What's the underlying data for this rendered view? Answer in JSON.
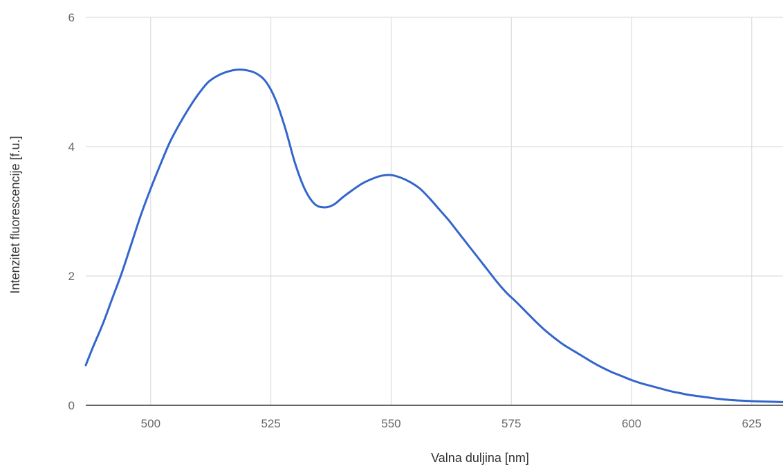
{
  "chart_data": {
    "type": "line",
    "title": "",
    "xlabel": "Valna duljina [nm]",
    "ylabel": "Intenzitet fluorescencije [f.u.]",
    "xlim": [
      486.5,
      631.5
    ],
    "ylim": [
      0,
      6
    ],
    "x_ticks": [
      500,
      525,
      550,
      575,
      600,
      625
    ],
    "y_ticks": [
      0,
      2,
      4,
      6
    ],
    "grid": true,
    "legend": "none",
    "colors": {
      "series": "#3366cc",
      "grid": "#d6d6d6",
      "baseline": "#333333",
      "tick_text": "#666666",
      "axis_title_text": "#333333"
    },
    "series": [
      {
        "x": [
          486.5,
          488,
          490,
          492,
          494,
          496,
          498,
          500,
          502,
          504,
          506,
          508,
          510,
          512,
          514,
          516,
          518,
          520,
          522,
          524,
          526,
          528,
          530,
          532,
          534,
          536,
          538,
          540,
          542,
          544,
          546,
          548,
          550,
          552,
          554,
          556,
          558,
          560,
          562,
          564,
          566,
          568,
          570,
          572,
          574,
          576,
          578,
          580,
          582,
          584,
          586,
          588,
          590,
          592,
          594,
          596,
          598,
          600,
          602,
          604,
          606,
          608,
          610,
          612,
          614,
          616,
          618,
          620,
          622,
          624,
          626,
          628,
          630,
          631.5
        ],
        "values": [
          0.62,
          0.9,
          1.25,
          1.65,
          2.05,
          2.5,
          2.95,
          3.35,
          3.72,
          4.07,
          4.35,
          4.6,
          4.82,
          5.0,
          5.1,
          5.16,
          5.19,
          5.18,
          5.13,
          5.0,
          4.72,
          4.28,
          3.75,
          3.35,
          3.12,
          3.06,
          3.1,
          3.22,
          3.33,
          3.43,
          3.5,
          3.55,
          3.56,
          3.52,
          3.45,
          3.35,
          3.2,
          3.03,
          2.86,
          2.67,
          2.48,
          2.29,
          2.1,
          1.91,
          1.74,
          1.6,
          1.45,
          1.3,
          1.16,
          1.04,
          0.93,
          0.84,
          0.75,
          0.66,
          0.58,
          0.51,
          0.45,
          0.39,
          0.34,
          0.3,
          0.26,
          0.22,
          0.19,
          0.16,
          0.14,
          0.12,
          0.1,
          0.085,
          0.075,
          0.068,
          0.062,
          0.057,
          0.053,
          0.05
        ]
      }
    ]
  }
}
